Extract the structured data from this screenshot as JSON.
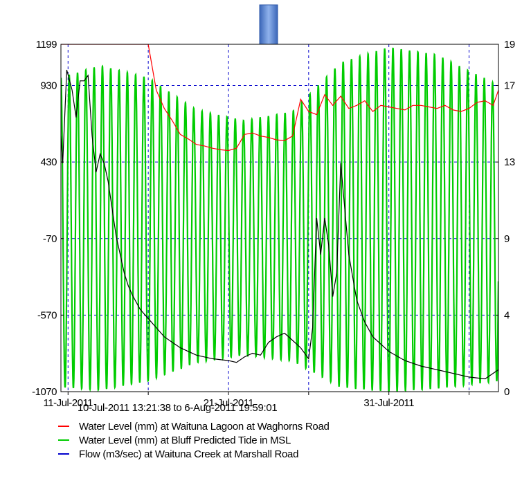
{
  "chart_data": {
    "type": "line",
    "date_range": "10-Jul-2011 13:21:38 to  6-Aug-2011 19:59:01",
    "x_tick_labels": [
      "11-Jul-2011",
      "21-Jul-2011",
      "31-Jul-2011"
    ],
    "y_left_ticks": [
      "1199",
      "930",
      "430",
      "-70",
      "-570",
      "-1070"
    ],
    "y_right_ticks": [
      "19",
      "17",
      "13",
      "9",
      "4",
      "0"
    ],
    "y_left_lim": [
      -1070,
      1199
    ],
    "y_right_lim": [
      0,
      19
    ],
    "x_lim": [
      "2011-07-10T13:21",
      "2011-08-06T19:59"
    ],
    "grid": "dashed, on major ticks",
    "annotation": "down-arrow above chart pointing at around 21-Jul-2011",
    "series": [
      {
        "name": "Water Level (mm) at Waituna Lagoon at Waghorns Road",
        "color": "#ff0000",
        "axis": "left",
        "x": [
          "2011-07-10T13:21",
          "2011-07-16T00:00",
          "2011-07-16T06:00",
          "2011-07-16T12:00",
          "2011-07-17T00:00",
          "2011-07-17T12:00",
          "2011-07-18T00:00",
          "2011-07-18T12:00",
          "2011-07-19T00:00",
          "2011-07-19T12:00",
          "2011-07-20T00:00",
          "2011-07-20T12:00",
          "2011-07-21T00:00",
          "2011-07-21T12:00",
          "2011-07-22T00:00",
          "2011-07-22T12:00",
          "2011-07-23T00:00",
          "2011-07-23T12:00",
          "2011-07-24T00:00",
          "2011-07-24T12:00",
          "2011-07-25T00:00",
          "2011-07-25T12:00",
          "2011-07-26T00:00",
          "2011-07-26T12:00",
          "2011-07-27T00:00",
          "2011-07-27T12:00",
          "2011-07-28T00:00",
          "2011-07-28T12:00",
          "2011-07-29T00:00",
          "2011-07-29T12:00",
          "2011-07-30T00:00",
          "2011-07-30T12:00",
          "2011-07-31T00:00",
          "2011-07-31T12:00",
          "2011-08-01T00:00",
          "2011-08-01T12:00",
          "2011-08-02T00:00",
          "2011-08-02T12:00",
          "2011-08-03T00:00",
          "2011-08-03T12:00",
          "2011-08-04T00:00",
          "2011-08-04T12:00",
          "2011-08-05T00:00",
          "2011-08-05T12:00",
          "2011-08-06T00:00",
          "2011-08-06T12:00",
          "2011-08-06T19:59"
        ],
        "values": [
          1199,
          1199,
          1050,
          900,
          780,
          700,
          610,
          580,
          545,
          535,
          520,
          510,
          505,
          520,
          610,
          620,
          600,
          590,
          575,
          570,
          600,
          840,
          760,
          740,
          870,
          800,
          860,
          780,
          800,
          830,
          760,
          800,
          790,
          780,
          770,
          800,
          800,
          790,
          780,
          800,
          770,
          760,
          780,
          820,
          830,
          800,
          900
        ]
      },
      {
        "name": "Water Level (mm) at Bluff Predicted Tide in MSL",
        "color": "#00cc00",
        "axis": "left",
        "tidal_period_hours": 12.42,
        "envelope": {
          "x": [
            "2011-07-10T13:21",
            "2011-07-13T00:00",
            "2011-07-16T00:00",
            "2011-07-19T00:00",
            "2011-07-22T00:00",
            "2011-07-25T00:00",
            "2011-07-28T00:00",
            "2011-07-31T00:00",
            "2011-08-03T00:00",
            "2011-08-06T19:59"
          ],
          "high": [
            980,
            1060,
            980,
            770,
            700,
            760,
            1080,
            1180,
            1130,
            930
          ],
          "low": [
            -1040,
            -1060,
            -1000,
            -880,
            -830,
            -870,
            -1040,
            -1070,
            -1050,
            -1000
          ]
        }
      },
      {
        "name": "Flow (m3/sec) at Waituna Creek at Marshall Road",
        "color": "#000000",
        "axis": "right",
        "x": [
          "2011-07-10T13:21",
          "2011-07-10T16:00",
          "2011-07-10T22:00",
          "2011-07-11T06:00",
          "2011-07-11T12:00",
          "2011-07-11T18:00",
          "2011-07-12T00:00",
          "2011-07-12T06:00",
          "2011-07-12T12:00",
          "2011-07-12T18:00",
          "2011-07-13T00:00",
          "2011-07-13T06:00",
          "2011-07-13T12:00",
          "2011-07-13T18:00",
          "2011-07-14T00:00",
          "2011-07-14T06:00",
          "2011-07-14T12:00",
          "2011-07-14T18:00",
          "2011-07-15T00:00",
          "2011-07-15T12:00",
          "2011-07-16T00:00",
          "2011-07-16T12:00",
          "2011-07-17T00:00",
          "2011-07-17T12:00",
          "2011-07-18T00:00",
          "2011-07-18T12:00",
          "2011-07-19T00:00",
          "2011-07-20T00:00",
          "2011-07-21T00:00",
          "2011-07-21T12:00",
          "2011-07-22T00:00",
          "2011-07-22T12:00",
          "2011-07-23T00:00",
          "2011-07-23T12:00",
          "2011-07-24T00:00",
          "2011-07-24T12:00",
          "2011-07-25T00:00",
          "2011-07-25T12:00",
          "2011-07-26T00:00",
          "2011-07-26T06:00",
          "2011-07-26T12:00",
          "2011-07-26T18:00",
          "2011-07-27T00:00",
          "2011-07-27T06:00",
          "2011-07-27T12:00",
          "2011-07-27T18:00",
          "2011-07-28T00:00",
          "2011-07-28T12:00",
          "2011-07-29T00:00",
          "2011-07-29T12:00",
          "2011-07-30T00:00",
          "2011-07-31T00:00",
          "2011-08-01T00:00",
          "2011-08-02T00:00",
          "2011-08-03T00:00",
          "2011-08-04T00:00",
          "2011-08-05T00:00",
          "2011-08-06T00:00",
          "2011-08-06T19:59"
        ],
        "values": [
          14,
          12.5,
          17.6,
          16.5,
          15,
          17,
          17,
          17.3,
          14,
          12,
          13,
          12.5,
          11.5,
          10,
          8.5,
          7.5,
          6.5,
          5.8,
          5.3,
          4.5,
          4,
          3.5,
          3,
          2.7,
          2.4,
          2.2,
          2,
          1.8,
          1.7,
          1.6,
          1.9,
          2.1,
          2.0,
          2.7,
          3.0,
          3.2,
          2.8,
          2.4,
          1.8,
          3.5,
          9.5,
          7.5,
          9.5,
          8.0,
          5.2,
          6.5,
          12.5,
          7.5,
          5.0,
          3.8,
          3.0,
          2.2,
          1.7,
          1.4,
          1.2,
          1.0,
          0.8,
          0.7,
          1.2
        ]
      }
    ],
    "legend_placement": "bottom"
  }
}
